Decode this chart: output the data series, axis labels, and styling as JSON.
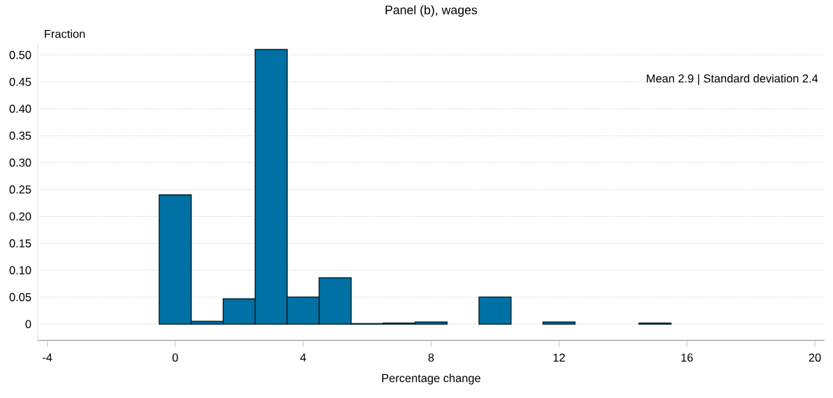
{
  "chart_data": {
    "type": "histogram",
    "title": "Panel (b), wages",
    "xlabel": "Percentage change",
    "ylabel": "Fraction",
    "annotations": [
      "Mean 2.9 | Standard deviation 2.4"
    ],
    "bins": [
      -0.5,
      0.5,
      1.5,
      2.5,
      3.5,
      4.5,
      5.5,
      6.5,
      7.5,
      8.5,
      9.5,
      10.5,
      11.5,
      12.5,
      13.5,
      14.5,
      15.5
    ],
    "values": [
      0.24,
      0.005,
      0.047,
      0.51,
      0.05,
      0.086,
      0.001,
      0.002,
      0.004,
      0,
      0.05,
      0,
      0.004,
      0,
      0,
      0.002
    ],
    "color": "#0071a4",
    "xlim": [
      -4.3,
      20.3
    ],
    "xticks": [
      -4,
      0,
      4,
      8,
      12,
      16,
      20
    ],
    "ylim": [
      -0.03,
      0.52
    ],
    "yticks": [
      {
        "value": 0,
        "label": "0"
      },
      {
        "value": 0.05,
        "label": "0.05"
      },
      {
        "value": 0.1,
        "label": "0.10"
      },
      {
        "value": 0.15,
        "label": "0.15"
      },
      {
        "value": 0.2,
        "label": "0.20"
      },
      {
        "value": 0.25,
        "label": "0.25"
      },
      {
        "value": 0.3,
        "label": "0.30"
      },
      {
        "value": 0.35,
        "label": "0.35"
      },
      {
        "value": 0.4,
        "label": "0.40"
      },
      {
        "value": 0.45,
        "label": "0.45"
      },
      {
        "value": 0.5,
        "label": "0.50"
      }
    ],
    "grid": "y"
  }
}
